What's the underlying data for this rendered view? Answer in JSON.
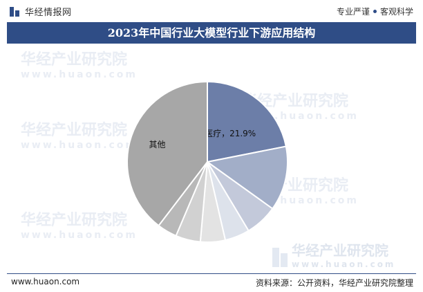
{
  "header": {
    "brand": "华经情报网",
    "slogan_a": "专业严谨",
    "slogan_b": "客观科学"
  },
  "title": "2023年中国行业大模型行业下游应用结构",
  "watermark": {
    "text": "华经产业研究院",
    "url": "www.huaon.com"
  },
  "footer": {
    "website": "www.huaon.com",
    "source": "资料来源：公开资料，华经产业研究院整理"
  },
  "colors": {
    "accent": "#2f4d86"
  },
  "chart_data": {
    "type": "pie",
    "slices": [
      {
        "label": "医疗",
        "value": 21.9,
        "color": "#6c7ea8",
        "data_label": "医疗，21.9%"
      },
      {
        "label": "",
        "value": 13.0,
        "color": "#a2aec8"
      },
      {
        "label": "",
        "value": 6.5,
        "color": "#c3c9da"
      },
      {
        "label": "",
        "value": 5.0,
        "color": "#dde2eb"
      },
      {
        "label": "",
        "value": 5.0,
        "color": "#e3e3e3"
      },
      {
        "label": "",
        "value": 5.0,
        "color": "#d1d1d1"
      },
      {
        "label": "",
        "value": 4.0,
        "color": "#b8b8b8"
      },
      {
        "label": "其他",
        "value": 39.6,
        "color": "#a7a7a7",
        "data_label": "其他"
      }
    ]
  }
}
